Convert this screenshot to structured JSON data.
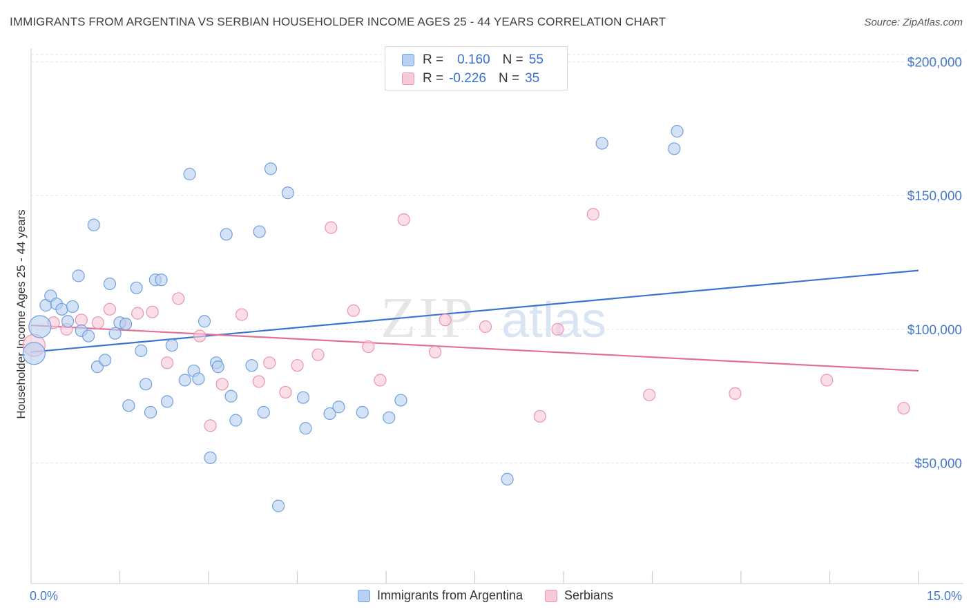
{
  "title": "IMMIGRANTS FROM ARGENTINA VS SERBIAN HOUSEHOLDER INCOME AGES 25 - 44 YEARS CORRELATION CHART",
  "source": "Source: ZipAtlas.com",
  "watermark": {
    "zip": "ZIP",
    "atlas": "atlas"
  },
  "legend": {
    "rows": [
      {
        "r_label": "R =",
        "r_value": "0.160",
        "n_label": "N =",
        "n_value": "55"
      },
      {
        "r_label": "R =",
        "r_value": "-0.226",
        "n_label": "N =",
        "n_value": "35"
      }
    ]
  },
  "colors": {
    "blue_fill": "#b9d1f1",
    "blue_stroke": "#6f9fe0",
    "blue_line": "#3a74cf",
    "pink_fill": "#f8c9d6",
    "pink_stroke": "#ea94af",
    "pink_line": "#e0709a",
    "grid": "#e3e3e3",
    "tick_text": "#4477cc"
  },
  "chart_data": {
    "type": "scatter",
    "title": "IMMIGRANTS FROM ARGENTINA VS SERBIAN HOUSEHOLDER INCOME AGES 25 - 44 YEARS CORRELATION CHART",
    "xlabel": "",
    "ylabel": "Householder Income Ages 25 - 44 years",
    "xlim": [
      0,
      15
    ],
    "ylim": [
      5000,
      205000
    ],
    "x_tick_labels": [
      "0.0%",
      "15.0%"
    ],
    "y_ticks": [
      50000,
      100000,
      150000,
      200000
    ],
    "y_tick_labels": [
      "$50,000",
      "$100,000",
      "$150,000",
      "$200,000"
    ],
    "series": [
      {
        "name": "Immigrants from Argentina",
        "color": "#6f9fe0",
        "trend": {
          "x": [
            0,
            15
          ],
          "y": [
            91500,
            122000
          ]
        },
        "points": [
          {
            "x": 0.05,
            "y": 91000,
            "big": 1
          },
          {
            "x": 0.15,
            "y": 101000,
            "big": 1
          },
          {
            "x": 0.25,
            "y": 109000
          },
          {
            "x": 0.33,
            "y": 112500
          },
          {
            "x": 0.43,
            "y": 109500
          },
          {
            "x": 0.52,
            "y": 107500
          },
          {
            "x": 0.62,
            "y": 103000
          },
          {
            "x": 0.7,
            "y": 108500
          },
          {
            "x": 0.8,
            "y": 120000
          },
          {
            "x": 0.85,
            "y": 99500
          },
          {
            "x": 0.97,
            "y": 97500
          },
          {
            "x": 1.06,
            "y": 139000
          },
          {
            "x": 1.12,
            "y": 86000
          },
          {
            "x": 1.25,
            "y": 88500
          },
          {
            "x": 1.33,
            "y": 117000
          },
          {
            "x": 1.42,
            "y": 98500
          },
          {
            "x": 1.5,
            "y": 102500
          },
          {
            "x": 1.6,
            "y": 102000
          },
          {
            "x": 1.65,
            "y": 71500
          },
          {
            "x": 1.78,
            "y": 115500
          },
          {
            "x": 1.86,
            "y": 92000
          },
          {
            "x": 1.94,
            "y": 79500
          },
          {
            "x": 2.02,
            "y": 69000
          },
          {
            "x": 2.1,
            "y": 118500
          },
          {
            "x": 2.2,
            "y": 118500
          },
          {
            "x": 2.3,
            "y": 73000
          },
          {
            "x": 2.38,
            "y": 94000
          },
          {
            "x": 2.6,
            "y": 81000
          },
          {
            "x": 2.68,
            "y": 158000
          },
          {
            "x": 2.75,
            "y": 84500
          },
          {
            "x": 2.83,
            "y": 81500
          },
          {
            "x": 2.93,
            "y": 103000
          },
          {
            "x": 3.03,
            "y": 52000
          },
          {
            "x": 3.13,
            "y": 87500
          },
          {
            "x": 3.16,
            "y": 86000
          },
          {
            "x": 3.3,
            "y": 135500
          },
          {
            "x": 3.38,
            "y": 75000
          },
          {
            "x": 3.46,
            "y": 66000
          },
          {
            "x": 3.73,
            "y": 86500
          },
          {
            "x": 3.86,
            "y": 136500
          },
          {
            "x": 3.93,
            "y": 69000
          },
          {
            "x": 4.05,
            "y": 160000
          },
          {
            "x": 4.18,
            "y": 34000
          },
          {
            "x": 4.34,
            "y": 151000
          },
          {
            "x": 4.6,
            "y": 74500
          },
          {
            "x": 4.64,
            "y": 63000
          },
          {
            "x": 5.05,
            "y": 68500
          },
          {
            "x": 5.2,
            "y": 71000
          },
          {
            "x": 5.6,
            "y": 69000
          },
          {
            "x": 6.05,
            "y": 67000
          },
          {
            "x": 6.25,
            "y": 73500
          },
          {
            "x": 8.05,
            "y": 44000
          },
          {
            "x": 9.65,
            "y": 169500
          },
          {
            "x": 10.87,
            "y": 167500
          },
          {
            "x": 10.92,
            "y": 174000
          }
        ]
      },
      {
        "name": "Serbians",
        "color": "#ea94af",
        "trend": {
          "x": [
            0,
            15
          ],
          "y": [
            101500,
            84500
          ]
        },
        "points": [
          {
            "x": 0.05,
            "y": 94000,
            "big": 1
          },
          {
            "x": 0.38,
            "y": 102500
          },
          {
            "x": 0.6,
            "y": 100000
          },
          {
            "x": 0.85,
            "y": 103500
          },
          {
            "x": 1.13,
            "y": 102500
          },
          {
            "x": 1.33,
            "y": 107500
          },
          {
            "x": 1.6,
            "y": 102000
          },
          {
            "x": 1.8,
            "y": 106000
          },
          {
            "x": 2.05,
            "y": 106500
          },
          {
            "x": 2.3,
            "y": 87500
          },
          {
            "x": 2.49,
            "y": 111500
          },
          {
            "x": 2.85,
            "y": 97500
          },
          {
            "x": 3.03,
            "y": 64000
          },
          {
            "x": 3.23,
            "y": 79500
          },
          {
            "x": 3.56,
            "y": 105500
          },
          {
            "x": 3.85,
            "y": 80500
          },
          {
            "x": 4.03,
            "y": 87500
          },
          {
            "x": 4.3,
            "y": 76500
          },
          {
            "x": 4.5,
            "y": 86500
          },
          {
            "x": 4.85,
            "y": 90500
          },
          {
            "x": 5.07,
            "y": 138000
          },
          {
            "x": 5.45,
            "y": 107000
          },
          {
            "x": 5.7,
            "y": 93500
          },
          {
            "x": 5.9,
            "y": 81000
          },
          {
            "x": 6.3,
            "y": 141000
          },
          {
            "x": 6.83,
            "y": 91500
          },
          {
            "x": 7.0,
            "y": 103500
          },
          {
            "x": 7.68,
            "y": 101000
          },
          {
            "x": 8.6,
            "y": 67500
          },
          {
            "x": 8.9,
            "y": 100000
          },
          {
            "x": 9.5,
            "y": 143000
          },
          {
            "x": 10.45,
            "y": 75500
          },
          {
            "x": 11.9,
            "y": 76000
          },
          {
            "x": 13.45,
            "y": 81000
          },
          {
            "x": 14.75,
            "y": 70500
          }
        ]
      }
    ]
  }
}
